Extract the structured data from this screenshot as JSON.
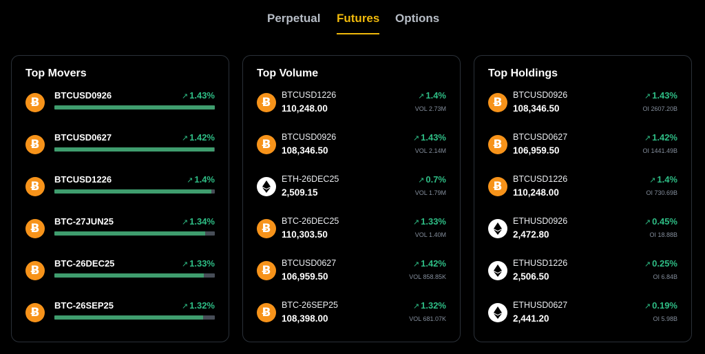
{
  "tabs": [
    {
      "label": "Perpetual",
      "active": false
    },
    {
      "label": "Futures",
      "active": true
    },
    {
      "label": "Options",
      "active": false
    }
  ],
  "colors": {
    "accent": "#f0b90b",
    "positive": "#2ebd85",
    "btc": "#f7931a"
  },
  "top_movers": {
    "title": "Top Movers",
    "items": [
      {
        "coin": "btc-icon",
        "symbol": "BTCUSD0926",
        "change": "1.43%",
        "bar_fraction": 1.0
      },
      {
        "coin": "btc-icon",
        "symbol": "BTCUSD0627",
        "change": "1.42%",
        "bar_fraction": 0.995
      },
      {
        "coin": "btc-icon",
        "symbol": "BTCUSD1226",
        "change": "1.4%",
        "bar_fraction": 0.98
      },
      {
        "coin": "btc-icon",
        "symbol": "BTC-27JUN25",
        "change": "1.34%",
        "bar_fraction": 0.94
      },
      {
        "coin": "btc-icon",
        "symbol": "BTC-26DEC25",
        "change": "1.33%",
        "bar_fraction": 0.93
      },
      {
        "coin": "btc-icon",
        "symbol": "BTC-26SEP25",
        "change": "1.32%",
        "bar_fraction": 0.925
      }
    ]
  },
  "top_volume": {
    "title": "Top Volume",
    "items": [
      {
        "coin": "btc-icon",
        "symbol": "BTCUSD1226",
        "price": "110,248.00",
        "change": "1.4%",
        "sub": "VOL 2.73M"
      },
      {
        "coin": "btc-icon",
        "symbol": "BTCUSD0926",
        "price": "108,346.50",
        "change": "1.43%",
        "sub": "VOL 2.14M"
      },
      {
        "coin": "eth-icon",
        "symbol": "ETH-26DEC25",
        "price": "2,509.15",
        "change": "0.7%",
        "sub": "VOL 1.79M"
      },
      {
        "coin": "btc-icon",
        "symbol": "BTC-26DEC25",
        "price": "110,303.50",
        "change": "1.33%",
        "sub": "VOL 1.40M"
      },
      {
        "coin": "btc-icon",
        "symbol": "BTCUSD0627",
        "price": "106,959.50",
        "change": "1.42%",
        "sub": "VOL 858.85K"
      },
      {
        "coin": "btc-icon",
        "symbol": "BTC-26SEP25",
        "price": "108,398.00",
        "change": "1.32%",
        "sub": "VOL 681.07K"
      }
    ]
  },
  "top_holdings": {
    "title": "Top Holdings",
    "items": [
      {
        "coin": "btc-icon",
        "symbol": "BTCUSD0926",
        "price": "108,346.50",
        "change": "1.43%",
        "sub": "OI 2607.20B"
      },
      {
        "coin": "btc-icon",
        "symbol": "BTCUSD0627",
        "price": "106,959.50",
        "change": "1.42%",
        "sub": "OI 1441.49B"
      },
      {
        "coin": "btc-icon",
        "symbol": "BTCUSD1226",
        "price": "110,248.00",
        "change": "1.4%",
        "sub": "OI 730.69B"
      },
      {
        "coin": "eth-icon",
        "symbol": "ETHUSD0926",
        "price": "2,472.80",
        "change": "0.45%",
        "sub": "OI 18.88B"
      },
      {
        "coin": "eth-icon",
        "symbol": "ETHUSD1226",
        "price": "2,506.50",
        "change": "0.25%",
        "sub": "OI 6.84B"
      },
      {
        "coin": "eth-icon",
        "symbol": "ETHUSD0627",
        "price": "2,441.20",
        "change": "0.19%",
        "sub": "OI 5.98B"
      }
    ]
  }
}
